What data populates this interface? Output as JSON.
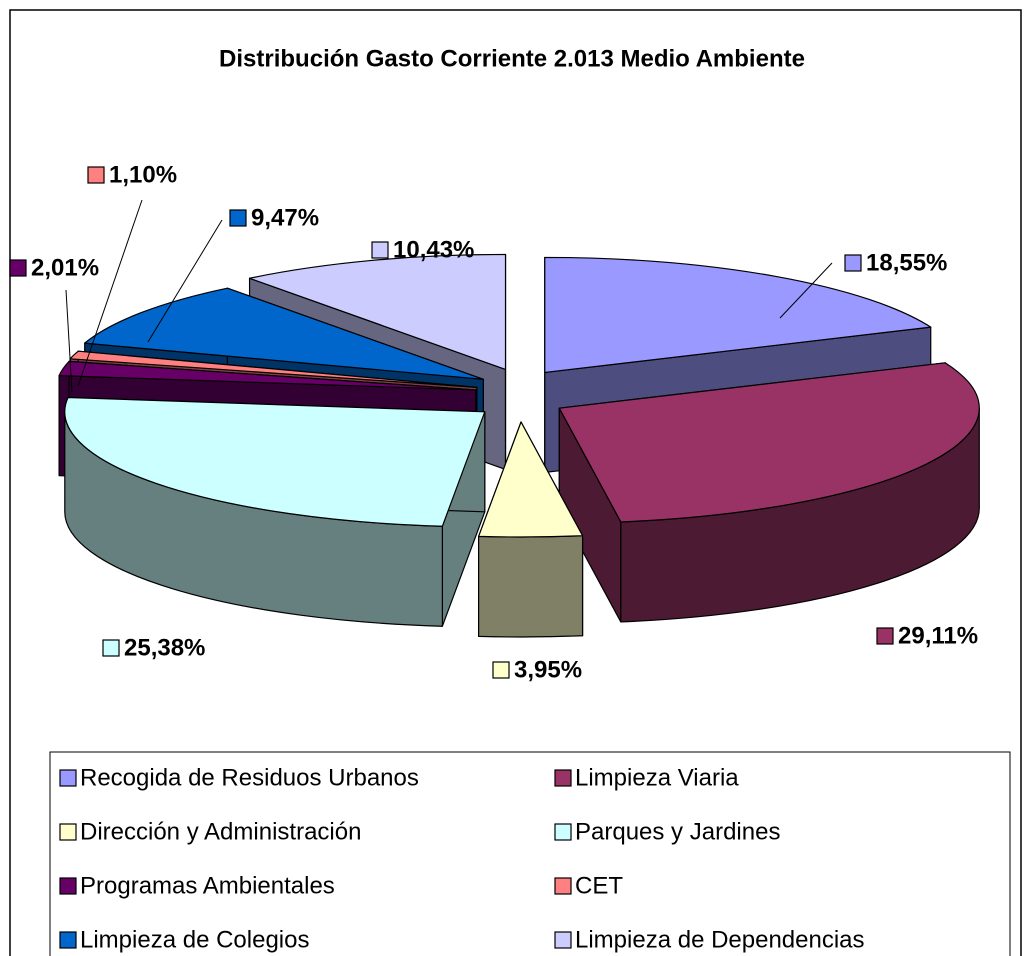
{
  "chart_data": {
    "type": "pie",
    "title": "Distribución Gasto Corriente 2.013 Medio Ambiente",
    "categories": [
      "Recogida de Residuos Urbanos",
      "Limpieza Viaria",
      "Dirección y Administración",
      "Parques y Jardines",
      "Programas Ambientales",
      "CET",
      "Limpieza de Colegios",
      "Limpieza de Dependencias"
    ],
    "values": [
      18.55,
      29.11,
      3.95,
      25.38,
      2.01,
      1.1,
      9.47,
      10.43
    ],
    "value_labels": [
      "18,55%",
      "29,11%",
      "3,95%",
      "25,38%",
      "2,01%",
      "1,10%",
      "9,47%",
      "10,43%"
    ],
    "colors": [
      "#9999ff",
      "#993366",
      "#ffffcc",
      "#ccffff",
      "#660066",
      "#ff8080",
      "#0066cc",
      "#ccccff"
    ],
    "legend": "bottom"
  }
}
